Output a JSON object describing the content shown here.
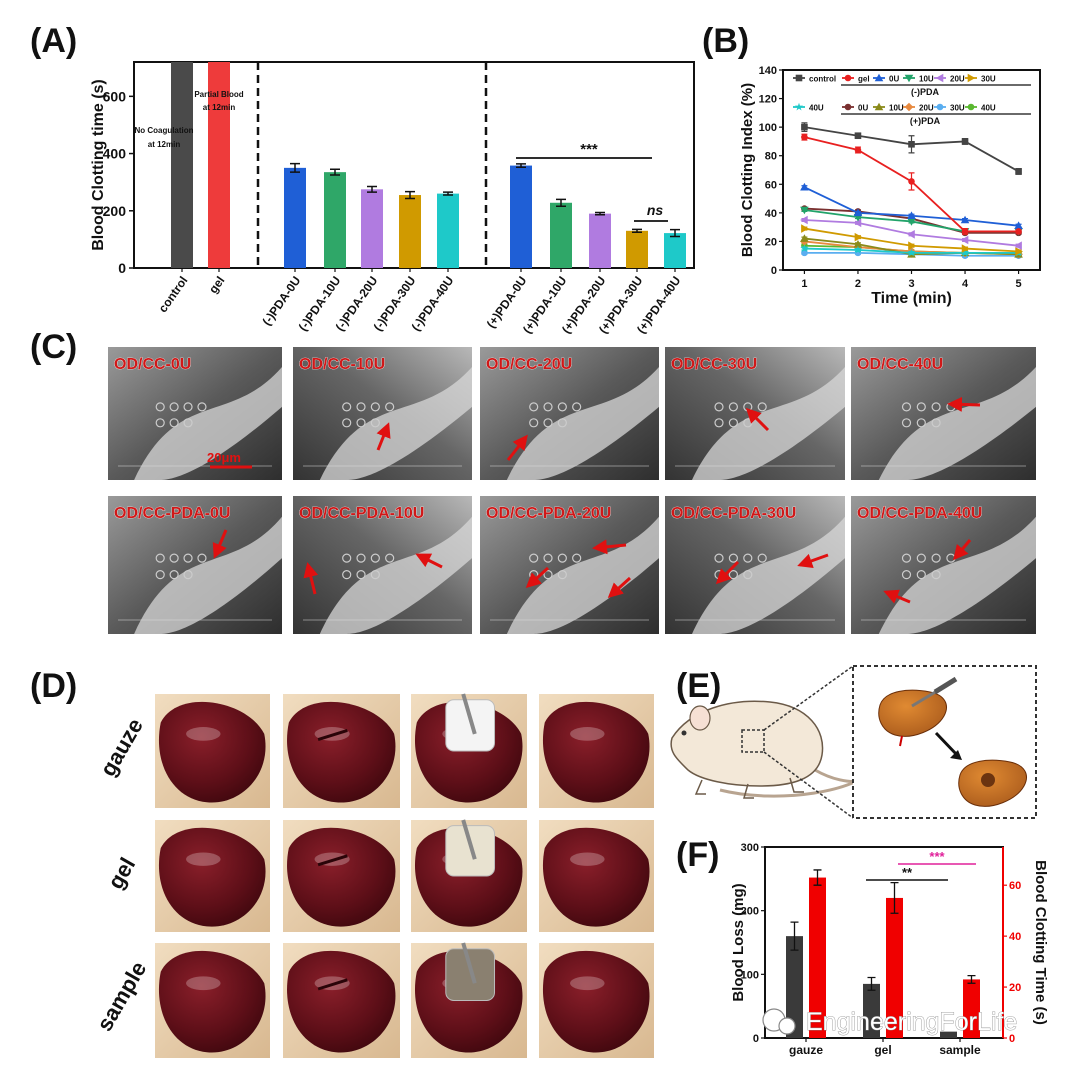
{
  "panels": {
    "A": "(A)",
    "B": "(B)",
    "C": "(C)",
    "D": "(D)",
    "E": "(E)",
    "F": "(F)"
  },
  "chart_data": [
    {
      "id": "A",
      "type": "bar",
      "ylabel": "Blood Clotting time (s)",
      "ylim": [
        0,
        720
      ],
      "yticks": [
        0,
        200,
        400,
        600
      ],
      "categories": [
        "control",
        "gel",
        "(-)PDA-0U",
        "(-)PDA-10U",
        "(-)PDA-20U",
        "(-)PDA-30U",
        "(-)PDA-40U",
        "(+)PDA-0U",
        "(+)PDA-10U",
        "(+)PDA-20U",
        "(+)PDA-30U",
        "(+)PDA-40U"
      ],
      "values": [
        720,
        720,
        350,
        335,
        275,
        255,
        260,
        358,
        228,
        190,
        130,
        122
      ],
      "errors": [
        0,
        0,
        15,
        10,
        10,
        12,
        5,
        6,
        12,
        4,
        5,
        12
      ],
      "colors": [
        "#4a4a4a",
        "#ee3b3b",
        "#1f5fd6",
        "#2fa768",
        "#b07be0",
        "#d09a00",
        "#1ec9c9",
        "#1f5fd6",
        "#2fa768",
        "#b07be0",
        "#d09a00",
        "#1ec9c9"
      ],
      "annotations": {
        "control_line1": "No Coagulation",
        "control_line2": "at 12min",
        "gel_line1": "Partial Blood",
        "gel_line2": "at 12min",
        "sig": "***",
        "ns": "ns"
      }
    },
    {
      "id": "B",
      "type": "line",
      "xlabel": "Time (min)",
      "ylabel": "Blood Clotting Index (%)",
      "x": [
        1,
        2,
        3,
        4,
        5
      ],
      "xlim": [
        0.6,
        5.4
      ],
      "ylim": [
        0,
        140
      ],
      "yticks": [
        0,
        20,
        40,
        60,
        80,
        100,
        120,
        140
      ],
      "group_minus": "(-)PDA",
      "group_plus": "(+)PDA",
      "series": [
        {
          "name": "control",
          "color": "#444444",
          "marker": "square",
          "values": [
            100,
            94,
            88,
            90,
            69
          ],
          "err": [
            3,
            1,
            6,
            2,
            2
          ]
        },
        {
          "name": "gel",
          "color": "#e82020",
          "marker": "circle",
          "values": [
            93,
            84,
            62,
            27,
            27
          ],
          "err": [
            2,
            2,
            6,
            2,
            1
          ]
        },
        {
          "name": "0U",
          "color": "#1f5fd6",
          "marker": "tri-up",
          "values": [
            58,
            40,
            38,
            35,
            31
          ],
          "err": [
            1,
            1,
            1,
            1,
            1
          ]
        },
        {
          "name": "10U",
          "color": "#22a36a",
          "marker": "tri-down",
          "values": [
            42,
            37,
            34,
            27,
            27
          ],
          "err": [
            1,
            1,
            1,
            1,
            1
          ]
        },
        {
          "name": "20U",
          "color": "#b07be0",
          "marker": "tri-left",
          "values": [
            35,
            33,
            25,
            21,
            17
          ],
          "err": [
            1,
            1,
            1,
            1,
            1
          ]
        },
        {
          "name": "30U",
          "color": "#d09a00",
          "marker": "tri-right",
          "values": [
            29,
            23,
            17,
            15,
            13
          ],
          "err": [
            1,
            1,
            1,
            1,
            1
          ]
        },
        {
          "name": "40U",
          "color": "#1ec9c9",
          "marker": "star",
          "values": [
            15,
            14,
            12,
            12,
            12
          ],
          "err": [
            1,
            1,
            1,
            1,
            1
          ]
        },
        {
          "name": "0U",
          "color": "#7a3030",
          "marker": "circle",
          "values": [
            43,
            41,
            36,
            26,
            26
          ],
          "err": [
            1,
            1,
            1,
            1,
            1
          ]
        },
        {
          "name": "10U",
          "color": "#8a8a1a",
          "marker": "tri-up",
          "values": [
            22,
            18,
            11,
            12,
            11
          ],
          "err": [
            1,
            1,
            1,
            1,
            1
          ]
        },
        {
          "name": "20U",
          "color": "#e88a40",
          "marker": "diamond",
          "values": [
            20,
            16,
            13,
            12,
            11
          ],
          "err": [
            1,
            1,
            1,
            1,
            1
          ]
        },
        {
          "name": "30U",
          "color": "#5aaef0",
          "marker": "circle",
          "values": [
            12,
            12,
            11,
            10,
            10
          ],
          "err": [
            1,
            1,
            1,
            1,
            1
          ]
        },
        {
          "name": "40U",
          "color": "#5ab830",
          "marker": "circle",
          "values": [
            17,
            16,
            13,
            12,
            12
          ],
          "err": [
            1,
            1,
            1,
            1,
            1
          ]
        }
      ]
    },
    {
      "id": "F",
      "type": "bar",
      "ylabel": "Blood Loss (mg)",
      "ylabel_right": "Blood Clotting Time (s)",
      "categories": [
        "gauze",
        "gel",
        "sample"
      ],
      "ylim": [
        0,
        300
      ],
      "yticks": [
        0,
        100,
        200,
        300
      ],
      "ylim_right": [
        0,
        75
      ],
      "yticks_right": [
        0,
        20,
        40,
        60
      ],
      "series": [
        {
          "name": "Blood Loss",
          "axis": "left",
          "color": "#3a3a3a",
          "values": [
            160,
            85,
            10
          ],
          "err": [
            22,
            10,
            0
          ]
        },
        {
          "name": "Blood Clotting Time",
          "axis": "right",
          "color": "#f00000",
          "values": [
            63,
            55,
            23
          ],
          "err": [
            3,
            6,
            1.5
          ]
        }
      ],
      "annotations": {
        "sig2": "**",
        "sig3": "***"
      }
    }
  ],
  "sem": {
    "row1": [
      "OD/CC-0U",
      "OD/CC-10U",
      "OD/CC-20U",
      "OD/CC-30U",
      "OD/CC-40U"
    ],
    "row2": [
      "OD/CC-PDA-0U",
      "OD/CC-PDA-10U",
      "OD/CC-PDA-20U",
      "OD/CC-PDA-30U",
      "OD/CC-PDA-40U"
    ],
    "scale": "20μm"
  },
  "photos": {
    "rows": [
      "gauze",
      "gel",
      "sample"
    ]
  },
  "watermark": "EngineeringForLife"
}
